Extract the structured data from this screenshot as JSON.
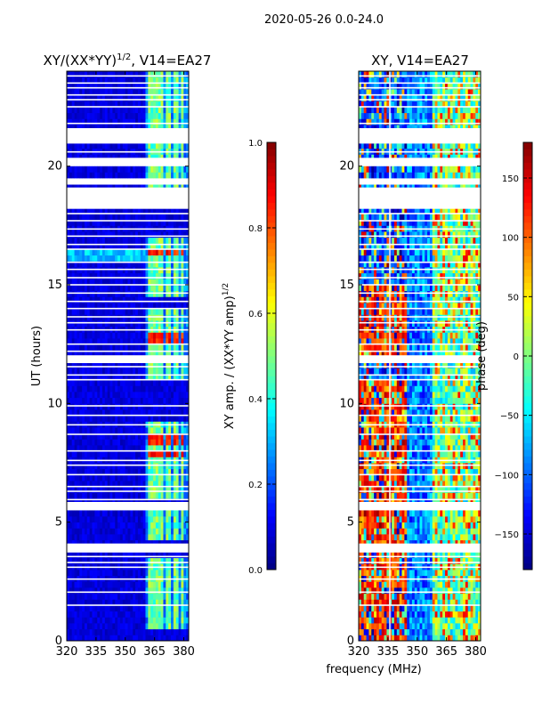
{
  "figure": {
    "suptitle": "2020-05-26 0.0-24.0",
    "xlabel_shared": "frequency (MHz)"
  },
  "chart_data": [
    {
      "type": "heatmap",
      "title_main": "XY/(XX*YY)",
      "title_exp": "1/2",
      "title_rest": ", V14=EA27",
      "xlabel": "",
      "ylabel": "UT (hours)",
      "xlim": [
        320,
        382.5
      ],
      "ylim": [
        0,
        24
      ],
      "xticks": [
        320,
        335,
        350,
        365,
        380
      ],
      "yticks": [
        0,
        5,
        10,
        15,
        20
      ],
      "colormap": "jet",
      "colorbar": {
        "label_main": "XY amp. / (XX*YY amp)",
        "label_exp": "1/2",
        "range": [
          0.0,
          1.0
        ],
        "ticks": [
          "0.0",
          "0.2",
          "0.4",
          "0.6",
          "0.8",
          "1.0"
        ]
      },
      "gap_rows_hours": [
        1.5,
        2.05,
        2.6,
        3.1,
        3.3,
        3.55,
        3.75,
        3.95,
        5.6,
        5.75,
        5.95,
        6.3,
        6.5,
        7.0,
        7.4,
        7.6,
        8.0,
        8.7,
        9.1,
        9.5,
        9.9,
        11.0,
        11.2,
        11.55,
        11.75,
        12.0,
        12.2,
        12.5,
        13.1,
        13.4,
        13.65,
        14.0,
        14.3,
        14.65,
        15.0,
        15.3,
        15.65,
        15.95,
        16.5,
        16.7,
        17.05,
        17.35,
        17.7,
        18.0,
        18.3,
        19.25,
        20.6,
        21.1,
        21.8,
        22.5,
        22.8,
        23.0,
        23.3,
        23.5,
        23.8
      ],
      "gap_bands_hours": [
        [
          3.8,
          4.1
        ],
        [
          5.5,
          5.85
        ],
        [
          11.7,
          11.95
        ],
        [
          18.2,
          19.1
        ],
        [
          19.3,
          19.45
        ],
        [
          20.0,
          20.35
        ],
        [
          20.95,
          21.6
        ]
      ],
      "bright_channels_mhz": [
        362.5,
        364.5,
        366.5,
        368.5,
        372,
        376,
        379.5
      ],
      "bright_spans_hours": [
        [
          0.4,
          3.6
        ],
        [
          4.2,
          5.5
        ],
        [
          5.9,
          9.3
        ],
        [
          11.0,
          14.0
        ],
        [
          14.5,
          17.0
        ],
        [
          18.4,
          24
        ]
      ],
      "peak_rows_hours": [
        7.9,
        8.5,
        12.6,
        12.8,
        12.95,
        16.3
      ]
    },
    {
      "type": "heatmap",
      "title_main": "XY, V14=EA27",
      "xlabel": "",
      "ylabel": "",
      "xlim": [
        320,
        382.5
      ],
      "ylim": [
        0,
        24
      ],
      "xticks": [
        320,
        335,
        350,
        365,
        380
      ],
      "yticks": [
        0,
        5,
        10,
        15,
        20
      ],
      "colormap": "jet",
      "colorbar": {
        "label_main": "phase (deg)",
        "range": [
          -180,
          180
        ],
        "ticks": [
          "−150",
          "−100",
          "−50",
          "0",
          "50",
          "100",
          "150"
        ]
      },
      "gap_rows_hours": [
        1.5,
        2.05,
        2.6,
        3.1,
        3.3,
        3.55,
        3.75,
        3.95,
        5.6,
        5.75,
        5.95,
        6.3,
        6.5,
        7.0,
        7.4,
        7.6,
        8.0,
        8.7,
        9.1,
        9.5,
        9.9,
        11.0,
        11.2,
        11.55,
        11.75,
        12.0,
        12.2,
        12.5,
        13.1,
        13.4,
        13.65,
        14.0,
        14.3,
        14.65,
        15.0,
        15.3,
        15.65,
        15.95,
        16.5,
        16.7,
        17.05,
        17.35,
        17.7,
        18.0,
        18.3,
        19.25,
        20.6,
        21.1,
        21.8,
        22.5,
        22.8,
        23.0,
        23.3,
        23.5,
        23.8
      ],
      "gap_bands_hours": [
        [
          3.8,
          4.1
        ],
        [
          5.5,
          5.85
        ],
        [
          11.7,
          11.95
        ],
        [
          18.2,
          19.1
        ],
        [
          19.3,
          19.45
        ],
        [
          20.0,
          20.35
        ],
        [
          20.95,
          21.6
        ]
      ],
      "vertical_gap_mhz": [
        335.5,
        336.5
      ]
    }
  ]
}
